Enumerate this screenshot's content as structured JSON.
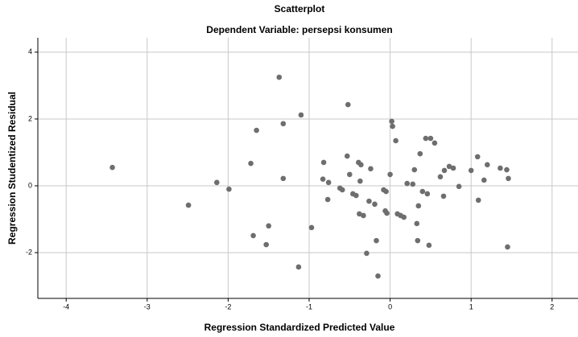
{
  "chart_data": {
    "type": "scatter",
    "title": "Scatterplot",
    "subtitle": "Dependent Variable: persepsi konsumen",
    "x_label": "Regression Standardized Predicted Value",
    "y_label": "Regression Studentized Residual",
    "xlim": [
      -4.35,
      2.32
    ],
    "ylim": [
      -3.37,
      4.43
    ],
    "xticks": [
      -4,
      -3,
      -2,
      -1,
      0,
      1,
      2
    ],
    "yticks": [
      -2,
      0,
      2,
      4
    ],
    "grid": true,
    "color": "#6e6e6e",
    "x": [
      -3.43,
      -2.49,
      -2.14,
      -1.99,
      -1.72,
      -1.65,
      -1.69,
      -1.53,
      -1.5,
      -1.37,
      -1.32,
      -1.32,
      -1.1,
      -0.97,
      -1.13,
      -0.83,
      -0.76,
      -0.82,
      -0.77,
      -0.62,
      -0.59,
      -0.53,
      -0.5,
      -0.52,
      -0.46,
      -0.42,
      -0.39,
      -0.36,
      -0.37,
      -0.38,
      -0.33,
      -0.29,
      -0.24,
      -0.26,
      -0.19,
      -0.17,
      -0.15,
      -0.08,
      -0.05,
      -0.06,
      -0.04,
      0.0,
      0.02,
      0.07,
      0.03,
      0.09,
      0.13,
      0.17,
      0.21,
      0.28,
      0.3,
      0.34,
      0.33,
      0.35,
      0.37,
      0.44,
      0.5,
      0.4,
      0.46,
      0.48,
      0.55,
      0.62,
      0.66,
      0.67,
      0.73,
      0.78,
      0.85,
      1.0,
      1.08,
      1.16,
      1.2,
      1.09,
      1.36,
      1.44,
      1.45,
      1.46
    ],
    "values": [
      0.55,
      -0.58,
      0.1,
      -0.1,
      0.67,
      1.66,
      -1.49,
      -1.76,
      -1.2,
      3.25,
      1.86,
      0.22,
      2.12,
      -1.25,
      -2.43,
      0.2,
      0.1,
      0.7,
      -0.41,
      -0.07,
      -0.12,
      0.89,
      0.34,
      2.43,
      -0.24,
      -0.29,
      0.7,
      0.63,
      0.14,
      -0.84,
      -0.89,
      -2.02,
      0.51,
      -0.46,
      -0.55,
      -1.64,
      -2.7,
      -0.12,
      -0.17,
      -0.75,
      -0.82,
      0.34,
      1.93,
      1.35,
      1.78,
      -0.84,
      -0.89,
      -0.94,
      0.07,
      0.05,
      0.48,
      -1.64,
      -1.13,
      -0.6,
      0.96,
      1.42,
      1.42,
      -0.17,
      -0.24,
      -1.78,
      1.28,
      0.27,
      -0.31,
      0.46,
      0.58,
      0.53,
      -0.02,
      0.46,
      0.87,
      0.17,
      0.63,
      -0.43,
      0.53,
      0.48,
      -1.83,
      0.22
    ]
  }
}
